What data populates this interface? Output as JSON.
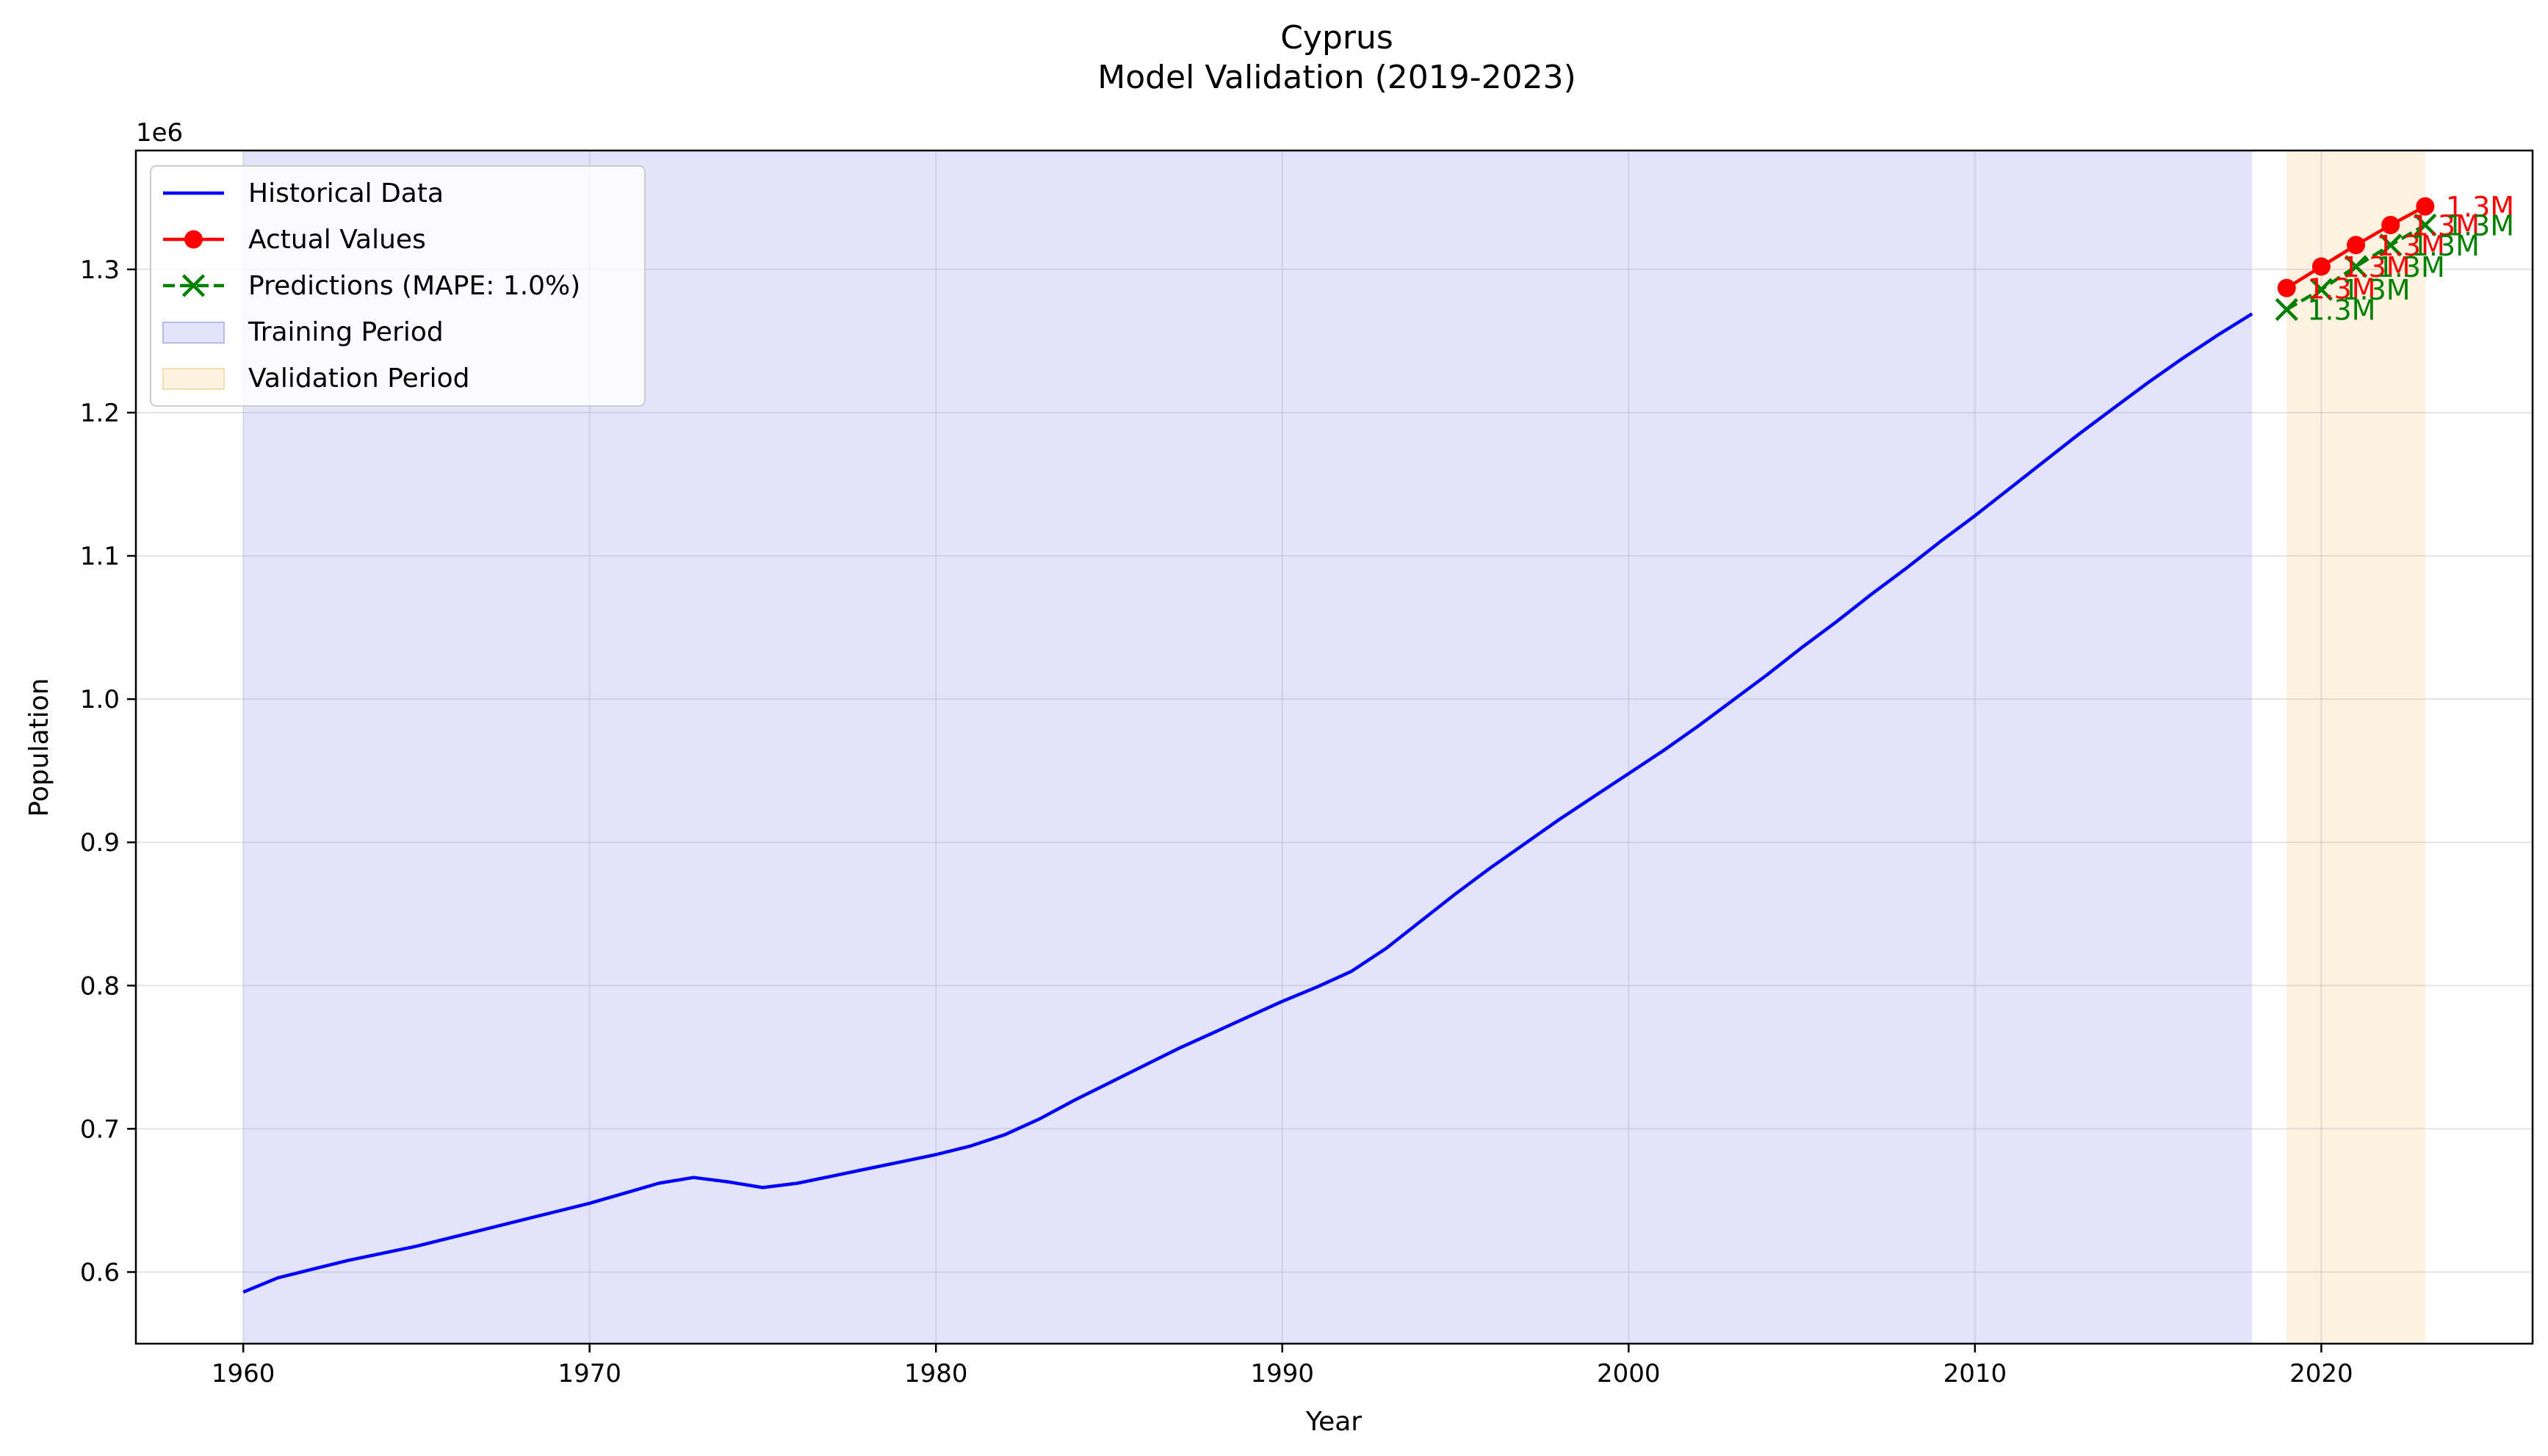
{
  "chart_data": {
    "type": "line",
    "title": "Cyprus",
    "subtitle": "Model Validation (2019-2023)",
    "xlabel": "Year",
    "ylabel": "Population",
    "y_offset_label": "1e6",
    "xlim": [
      1956.9,
      2026.1
    ],
    "ylim": [
      0.55,
      1.383
    ],
    "x_ticks": [
      1960,
      1970,
      1980,
      1990,
      2000,
      2010,
      2020
    ],
    "x_tick_labels": [
      "1960",
      "1970",
      "1980",
      "1990",
      "2000",
      "2010",
      "2020"
    ],
    "y_ticks": [
      0.6,
      0.7,
      0.8,
      0.9,
      1.0,
      1.1,
      1.2,
      1.3
    ],
    "y_tick_labels": [
      "0.6",
      "0.7",
      "0.8",
      "0.9",
      "1.0",
      "1.1",
      "1.2",
      "1.3"
    ],
    "grid": true,
    "legend_position": "upper-left",
    "colors": {
      "historical": "#0000ff",
      "actual": "#ff0000",
      "prediction": "#008000",
      "training": "#e3e3fc",
      "validation": "#fdf2e0"
    },
    "shaded_regions": [
      {
        "name": "Training Period",
        "x_start": 1960,
        "x_end": 2018
      },
      {
        "name": "Validation Period",
        "x_start": 2019,
        "x_end": 2023
      }
    ],
    "series": [
      {
        "name": "Historical Data",
        "style": "solid",
        "x": [
          1960,
          1961,
          1962,
          1963,
          1964,
          1965,
          1966,
          1967,
          1968,
          1969,
          1970,
          1971,
          1972,
          1973,
          1974,
          1975,
          1976,
          1977,
          1978,
          1979,
          1980,
          1981,
          1982,
          1983,
          1984,
          1985,
          1986,
          1987,
          1988,
          1989,
          1990,
          1991,
          1992,
          1993,
          1994,
          1995,
          1996,
          1997,
          1998,
          1999,
          2000,
          2001,
          2002,
          2003,
          2004,
          2005,
          2006,
          2007,
          2008,
          2009,
          2010,
          2011,
          2012,
          2013,
          2014,
          2015,
          2016,
          2017,
          2018
        ],
        "values": [
          0.586,
          0.596,
          0.602,
          0.608,
          0.613,
          0.618,
          0.624,
          0.63,
          0.636,
          0.642,
          0.648,
          0.655,
          0.662,
          0.666,
          0.663,
          0.659,
          0.662,
          0.667,
          0.672,
          0.677,
          0.682,
          0.688,
          0.696,
          0.707,
          0.72,
          0.732,
          0.744,
          0.756,
          0.767,
          0.778,
          0.789,
          0.799,
          0.81,
          0.826,
          0.845,
          0.864,
          0.882,
          0.899,
          0.916,
          0.932,
          0.948,
          0.964,
          0.981,
          0.999,
          1.017,
          1.036,
          1.054,
          1.073,
          1.091,
          1.11,
          1.128,
          1.147,
          1.166,
          1.185,
          1.203,
          1.221,
          1.238,
          1.254,
          1.269
        ]
      },
      {
        "name": "Actual Values",
        "style": "solid-marker-circle",
        "x": [
          2019,
          2020,
          2021,
          2022,
          2023
        ],
        "values": [
          1.287,
          1.302,
          1.317,
          1.331,
          1.344
        ],
        "point_labels": [
          "1.3M",
          "1.3M",
          "1.3M",
          "1.3M",
          "1.3M"
        ]
      },
      {
        "name": "Predictions (MAPE: 1.0%)",
        "style": "dashed-marker-x",
        "x": [
          2019,
          2020,
          2021,
          2022,
          2023
        ],
        "values": [
          1.272,
          1.286,
          1.302,
          1.317,
          1.331
        ],
        "point_labels": [
          "1.3M",
          "1.3M",
          "1.3M",
          "1.3M",
          "1.3M"
        ]
      }
    ]
  }
}
